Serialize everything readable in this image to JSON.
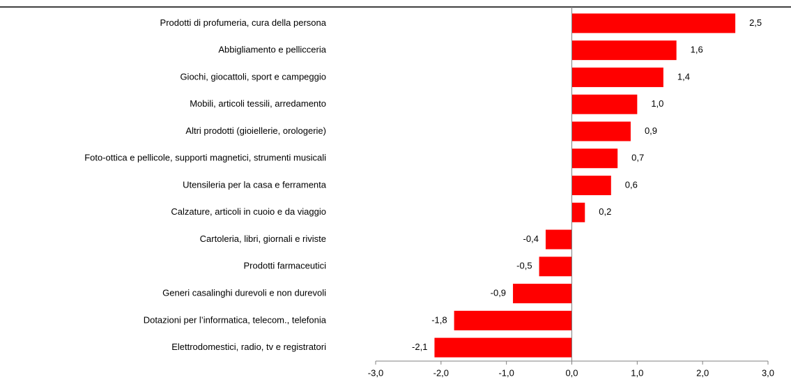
{
  "chart_data": {
    "type": "bar",
    "categories": [
      "Prodotti di profumeria, cura della persona",
      "Abbigliamento e pellicceria",
      "Giochi, giocattoli, sport e campeggio",
      "Mobili, articoli tessili, arredamento",
      "Altri prodotti (gioiellerie, orologerie)",
      "Foto-ottica e pellicole, supporti magnetici, strumenti  musicali",
      "Utensileria per la casa e ferramenta",
      "Calzature, articoli in cuoio e da viaggio",
      "Cartoleria, libri, giornali e riviste",
      "Prodotti farmaceutici",
      "Generi casalinghi durevoli e non durevoli",
      "Dotazioni per l’informatica, telecom., telefonia",
      "Elettrodomestici, radio, tv e registratori"
    ],
    "values": [
      2.5,
      1.6,
      1.4,
      1.0,
      0.9,
      0.7,
      0.6,
      0.2,
      -0.4,
      -0.5,
      -0.9,
      -1.8,
      -2.1
    ],
    "value_labels": [
      "2,5",
      "1,6",
      "1,4",
      "1,0",
      "0,9",
      "0,7",
      "0,6",
      "0,2",
      "-0,4",
      "-0,5",
      "-0,9",
      "-1,8",
      "-2,1"
    ],
    "color": "#ff0000",
    "xlim": [
      -3,
      3
    ],
    "xticks": [
      {
        "value": -3,
        "label": "-3,0"
      },
      {
        "value": -2,
        "label": "-2,0"
      },
      {
        "value": -1,
        "label": "-1,0"
      },
      {
        "value": 0,
        "label": "0,0"
      },
      {
        "value": 1,
        "label": "1,0"
      },
      {
        "value": 2,
        "label": "2,0"
      },
      {
        "value": 3,
        "label": "3,0"
      }
    ]
  }
}
